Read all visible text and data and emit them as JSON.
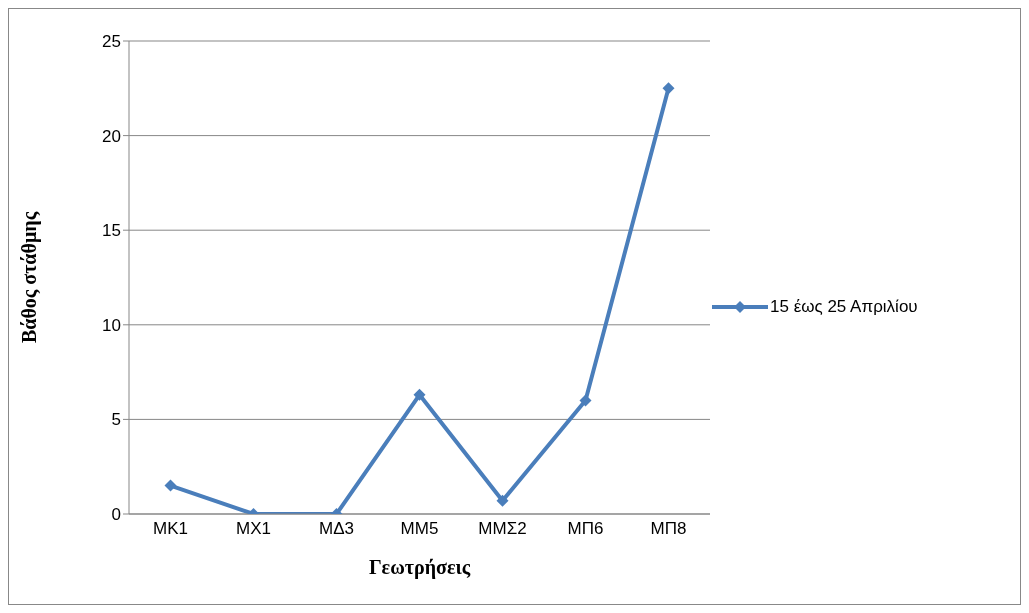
{
  "chart_data": {
    "type": "line",
    "xlabel": "Γεωτρήσεις",
    "ylabel": "Βάθος στάθμης",
    "categories": [
      "ΜΚ1",
      "ΜΧ1",
      "ΜΔ3",
      "ΜΜ5",
      "ΜΜΣ2",
      "ΜΠ6",
      "ΜΠ8"
    ],
    "series": [
      {
        "name": "15 έως 25 Απριλίου",
        "color": "#4a7ebb",
        "values": [
          1.5,
          0,
          0,
          6.3,
          0.7,
          6,
          22.5
        ]
      }
    ],
    "ylim": [
      0,
      25
    ],
    "yticks": [
      0,
      5,
      10,
      15,
      20,
      25
    ],
    "grid": "y",
    "legend": "right",
    "marker": "diamond",
    "line_style": "solid"
  }
}
